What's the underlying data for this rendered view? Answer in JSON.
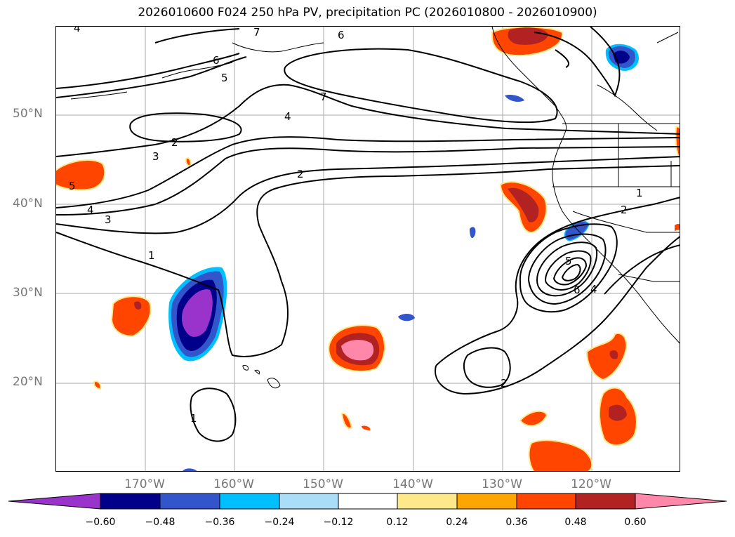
{
  "title": "2026010600 F024 250 hPa PV, precipitation PC (2026010800 - 2026010900)",
  "lat_labels": [
    "50°N",
    "40°N",
    "30°N",
    "20°N"
  ],
  "lon_labels": [
    "170°W",
    "160°W",
    "150°W",
    "140°W",
    "130°W",
    "120°W"
  ],
  "colorbar": {
    "ticks": [
      "−0.60",
      "−0.48",
      "−0.36",
      "−0.24",
      "−0.12",
      "0.12",
      "0.24",
      "0.36",
      "0.48",
      "0.60"
    ],
    "colors": [
      "#9933cc",
      "#00008b",
      "#3355cc",
      "#00bfff",
      "#aaddf8",
      "#ffffff",
      "#fde88a",
      "#ffa500",
      "#ff4500",
      "#b22222",
      "#ff88aa"
    ]
  },
  "contour_labels": [
    "1",
    "2",
    "3",
    "4",
    "5",
    "6",
    "7"
  ]
}
